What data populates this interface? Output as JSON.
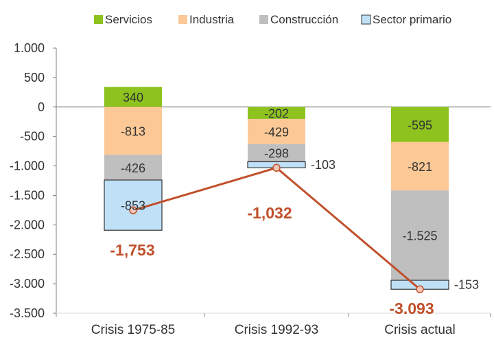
{
  "chart_data": {
    "type": "stacked-bar-with-line",
    "categories": [
      "Crisis 1975-85",
      "Crisis 1992-93",
      "Crisis actual"
    ],
    "series": [
      {
        "name": "Servicios",
        "color": "#8dc21f",
        "values": [
          340,
          -202,
          -595
        ],
        "labels": [
          "340",
          "-202",
          "-595"
        ]
      },
      {
        "name": "Industria",
        "color": "#fbc896",
        "values": [
          -813,
          -429,
          -821
        ],
        "labels": [
          "-813",
          "-429",
          "-821"
        ]
      },
      {
        "name": "Construcción",
        "color": "#bfbfbf",
        "values": [
          -426,
          -298,
          -1525
        ],
        "labels": [
          "-426",
          "-298",
          "-1.525"
        ]
      },
      {
        "name": "Sector primario",
        "color": "#bfe0f7",
        "border": "#333333",
        "values": [
          -853,
          -103,
          -153
        ],
        "labels": [
          "-853",
          "-103",
          "-153"
        ]
      }
    ],
    "totals": {
      "values": [
        -1753,
        -1032,
        -3093
      ],
      "labels": [
        "-1,753",
        "-1,032",
        "-3.093"
      ],
      "line_color": "#c0502b"
    },
    "y_ticks": [
      {
        "value": 1000,
        "label": "1.000"
      },
      {
        "value": 500,
        "label": "500"
      },
      {
        "value": 0,
        "label": "0"
      },
      {
        "value": -500,
        "label": "-500"
      },
      {
        "value": -1000,
        "label": "-1.000"
      },
      {
        "value": -1500,
        "label": "-1.500"
      },
      {
        "value": -2000,
        "label": "-2.000"
      },
      {
        "value": -2500,
        "label": "-2.500"
      },
      {
        "value": -3000,
        "label": "-3.000"
      },
      {
        "value": -3500,
        "label": "-3.500"
      }
    ],
    "ylim": [
      -3500,
      1000
    ],
    "legend_position": "top",
    "grid": false,
    "title": "",
    "xlabel": "",
    "ylabel": ""
  }
}
